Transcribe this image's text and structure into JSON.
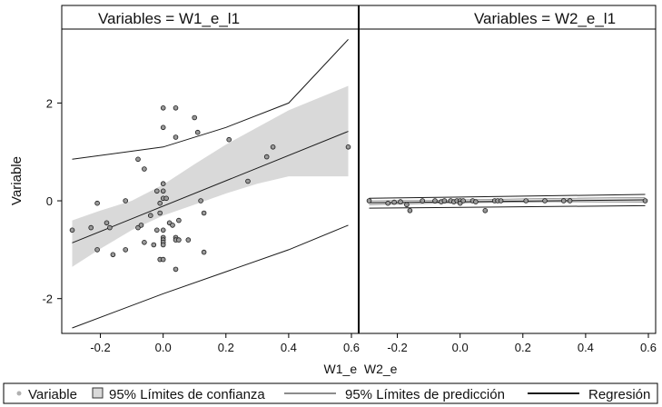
{
  "colors": {
    "band": "#d9d9d9",
    "line": "#1a1a1a",
    "point_fill": "#9a9a9a",
    "point_stroke": "#1a1a1a",
    "legend_dot": "#b0b0b0"
  },
  "chart_data": [
    {
      "type": "scatter",
      "panel_title": "Variables = W1_e_l1",
      "ylabel": "Variable",
      "xlim": [
        -0.3,
        0.6
      ],
      "ylim": [
        -2.6,
        3.4
      ],
      "xticks": [
        -0.2,
        0,
        0.2,
        0.4,
        0.6
      ],
      "xtick_labels": [
        "-0.2",
        "0.0",
        "0.2",
        "0.4",
        "0.6"
      ],
      "yticks": [
        2,
        0,
        -2
      ],
      "ytick_labels": [
        "2",
        "0",
        "-2"
      ],
      "points": [
        [
          -0.29,
          -0.6
        ],
        [
          -0.23,
          -0.55
        ],
        [
          -0.21,
          -0.05
        ],
        [
          -0.21,
          -1.0
        ],
        [
          -0.18,
          -0.45
        ],
        [
          -0.17,
          -0.55
        ],
        [
          -0.16,
          -1.1
        ],
        [
          -0.12,
          0.0
        ],
        [
          -0.12,
          -1.0
        ],
        [
          -0.08,
          0.85
        ],
        [
          -0.08,
          -0.55
        ],
        [
          -0.07,
          -0.5
        ],
        [
          -0.06,
          0.65
        ],
        [
          -0.06,
          -0.85
        ],
        [
          -0.04,
          -0.3
        ],
        [
          -0.03,
          -0.9
        ],
        [
          -0.02,
          -0.6
        ],
        [
          -0.02,
          0.2
        ],
        [
          -0.01,
          -0.05
        ],
        [
          -0.01,
          -0.25
        ],
        [
          -0.01,
          -1.2
        ],
        [
          0.0,
          1.9
        ],
        [
          0.0,
          1.5
        ],
        [
          0.0,
          0.35
        ],
        [
          0.0,
          0.2
        ],
        [
          0.0,
          0.05
        ],
        [
          0.0,
          -0.6
        ],
        [
          0.0,
          -0.75
        ],
        [
          0.0,
          -0.8
        ],
        [
          0.0,
          -0.85
        ],
        [
          0.0,
          -0.9
        ],
        [
          0.0,
          -1.2
        ],
        [
          0.01,
          0.05
        ],
        [
          0.02,
          -0.45
        ],
        [
          0.03,
          -0.5
        ],
        [
          0.04,
          1.9
        ],
        [
          0.04,
          1.3
        ],
        [
          0.04,
          -0.75
        ],
        [
          0.04,
          -0.8
        ],
        [
          0.04,
          -1.4
        ],
        [
          0.05,
          -0.4
        ],
        [
          0.05,
          -0.8
        ],
        [
          0.08,
          -0.8
        ],
        [
          0.1,
          1.7
        ],
        [
          0.11,
          1.4
        ],
        [
          0.12,
          0.0
        ],
        [
          0.13,
          -0.25
        ],
        [
          0.13,
          -1.05
        ],
        [
          0.21,
          1.25
        ],
        [
          0.27,
          0.4
        ],
        [
          0.33,
          0.9
        ],
        [
          0.35,
          1.1
        ],
        [
          0.59,
          1.1
        ]
      ],
      "regression": [
        [
          -0.29,
          -0.86
        ],
        [
          0.59,
          1.42
        ]
      ],
      "confidence_band": {
        "x": [
          -0.29,
          -0.2,
          -0.1,
          0.0,
          0.1,
          0.2,
          0.3,
          0.4,
          0.59
        ],
        "upper": [
          -0.4,
          -0.2,
          0.0,
          0.33,
          0.75,
          1.15,
          1.5,
          1.85,
          2.35
        ],
        "lower": [
          -1.35,
          -0.98,
          -0.6,
          -0.3,
          -0.08,
          0.15,
          0.35,
          0.5,
          0.5
        ]
      },
      "prediction_upper": [
        [
          -0.29,
          0.85
        ],
        [
          0.0,
          1.1
        ],
        [
          0.2,
          1.5
        ],
        [
          0.4,
          2.0
        ],
        [
          0.59,
          3.3
        ]
      ],
      "prediction_lower": [
        [
          -0.29,
          -2.6
        ],
        [
          0.0,
          -1.9
        ],
        [
          0.2,
          -1.45
        ],
        [
          0.4,
          -1.0
        ],
        [
          0.59,
          -0.5
        ]
      ]
    },
    {
      "type": "scatter",
      "panel_title": "Variables = W2_e_l1",
      "xlim": [
        -0.3,
        0.6
      ],
      "ylim": [
        -2.6,
        3.4
      ],
      "xticks": [
        -0.2,
        0,
        0.2,
        0.4,
        0.6
      ],
      "xtick_labels": [
        "-0.2",
        "0.0",
        "0.2",
        "0.4",
        "0.6"
      ],
      "points": [
        [
          -0.29,
          0.0
        ],
        [
          -0.23,
          -0.05
        ],
        [
          -0.21,
          -0.03
        ],
        [
          -0.19,
          -0.02
        ],
        [
          -0.17,
          -0.08
        ],
        [
          -0.16,
          -0.2
        ],
        [
          -0.12,
          0.0
        ],
        [
          -0.08,
          0.0
        ],
        [
          -0.06,
          -0.02
        ],
        [
          -0.05,
          0.0
        ],
        [
          -0.03,
          0.0
        ],
        [
          -0.02,
          -0.02
        ],
        [
          -0.01,
          0.0
        ],
        [
          0.0,
          0.0
        ],
        [
          0.0,
          -0.05
        ],
        [
          0.01,
          0.0
        ],
        [
          0.04,
          0.0
        ],
        [
          0.05,
          -0.02
        ],
        [
          0.08,
          -0.2
        ],
        [
          0.11,
          0.0
        ],
        [
          0.12,
          0.0
        ],
        [
          0.13,
          0.0
        ],
        [
          0.21,
          0.0
        ],
        [
          0.27,
          0.0
        ],
        [
          0.33,
          0.0
        ],
        [
          0.35,
          0.0
        ],
        [
          0.59,
          0.0
        ]
      ],
      "regression": [
        [
          -0.29,
          -0.04
        ],
        [
          0.59,
          0.02
        ]
      ],
      "confidence_band": {
        "x": [
          -0.29,
          0.0,
          0.3,
          0.59
        ],
        "upper": [
          0.0,
          0.02,
          0.05,
          0.07
        ],
        "lower": [
          -0.08,
          -0.04,
          -0.02,
          -0.03
        ]
      },
      "prediction_upper": [
        [
          -0.29,
          0.05
        ],
        [
          0.59,
          0.13
        ]
      ],
      "prediction_lower": [
        [
          -0.29,
          -0.15
        ],
        [
          0.59,
          -0.1
        ]
      ]
    }
  ],
  "xaxis_label": "W1_e  W2_e",
  "legend": {
    "items": [
      {
        "key": "point",
        "label": "Variable"
      },
      {
        "key": "band",
        "label": "95% Límites de confianza"
      },
      {
        "key": "thin-line",
        "label": "95% Límites de predicción"
      },
      {
        "key": "thick-line",
        "label": "Regresión"
      }
    ]
  }
}
